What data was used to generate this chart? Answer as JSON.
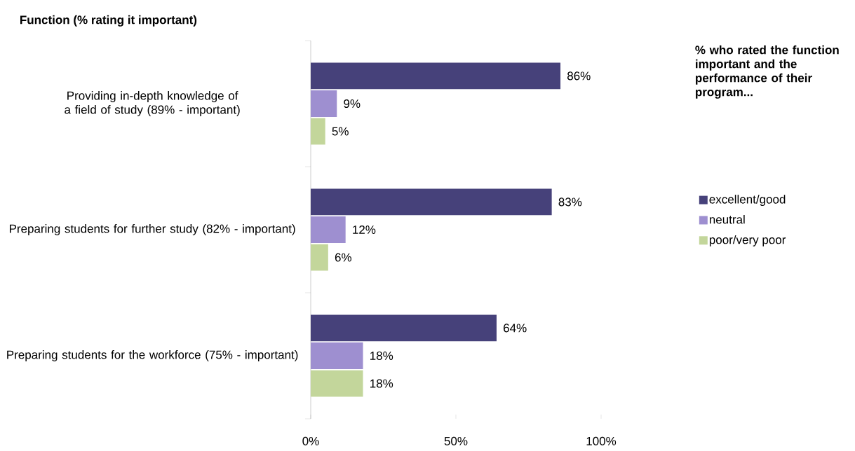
{
  "chart_data": {
    "type": "bar",
    "orientation": "horizontal",
    "title": "Function (% rating it important)",
    "legend_title": "% who rated the function important and the performance of their program...",
    "categories": [
      "Providing in-depth knowledge of a field of study (89% - important)",
      "Preparing students for further study (82% - important)",
      "Preparing students for the workforce (75% - important)"
    ],
    "series": [
      {
        "name": "excellent/good",
        "color": "#46417a",
        "values": [
          86,
          83,
          64
        ],
        "value_labels": [
          "86%",
          "83%",
          "64%"
        ]
      },
      {
        "name": "neutral",
        "color": "#9e8fd0",
        "values": [
          9,
          12,
          18
        ],
        "value_labels": [
          "9%",
          "12%",
          "18%"
        ]
      },
      {
        "name": "poor/very poor",
        "color": "#c3d69b",
        "values": [
          5,
          6,
          18
        ],
        "value_labels": [
          "5%",
          "6%",
          "18%"
        ]
      }
    ],
    "xlim": [
      0,
      100
    ],
    "xticks": [
      {
        "value": 0,
        "label": "0%"
      },
      {
        "value": 50,
        "label": "50%"
      },
      {
        "value": 100,
        "label": "100%"
      }
    ],
    "legend": "right",
    "grid": false
  }
}
